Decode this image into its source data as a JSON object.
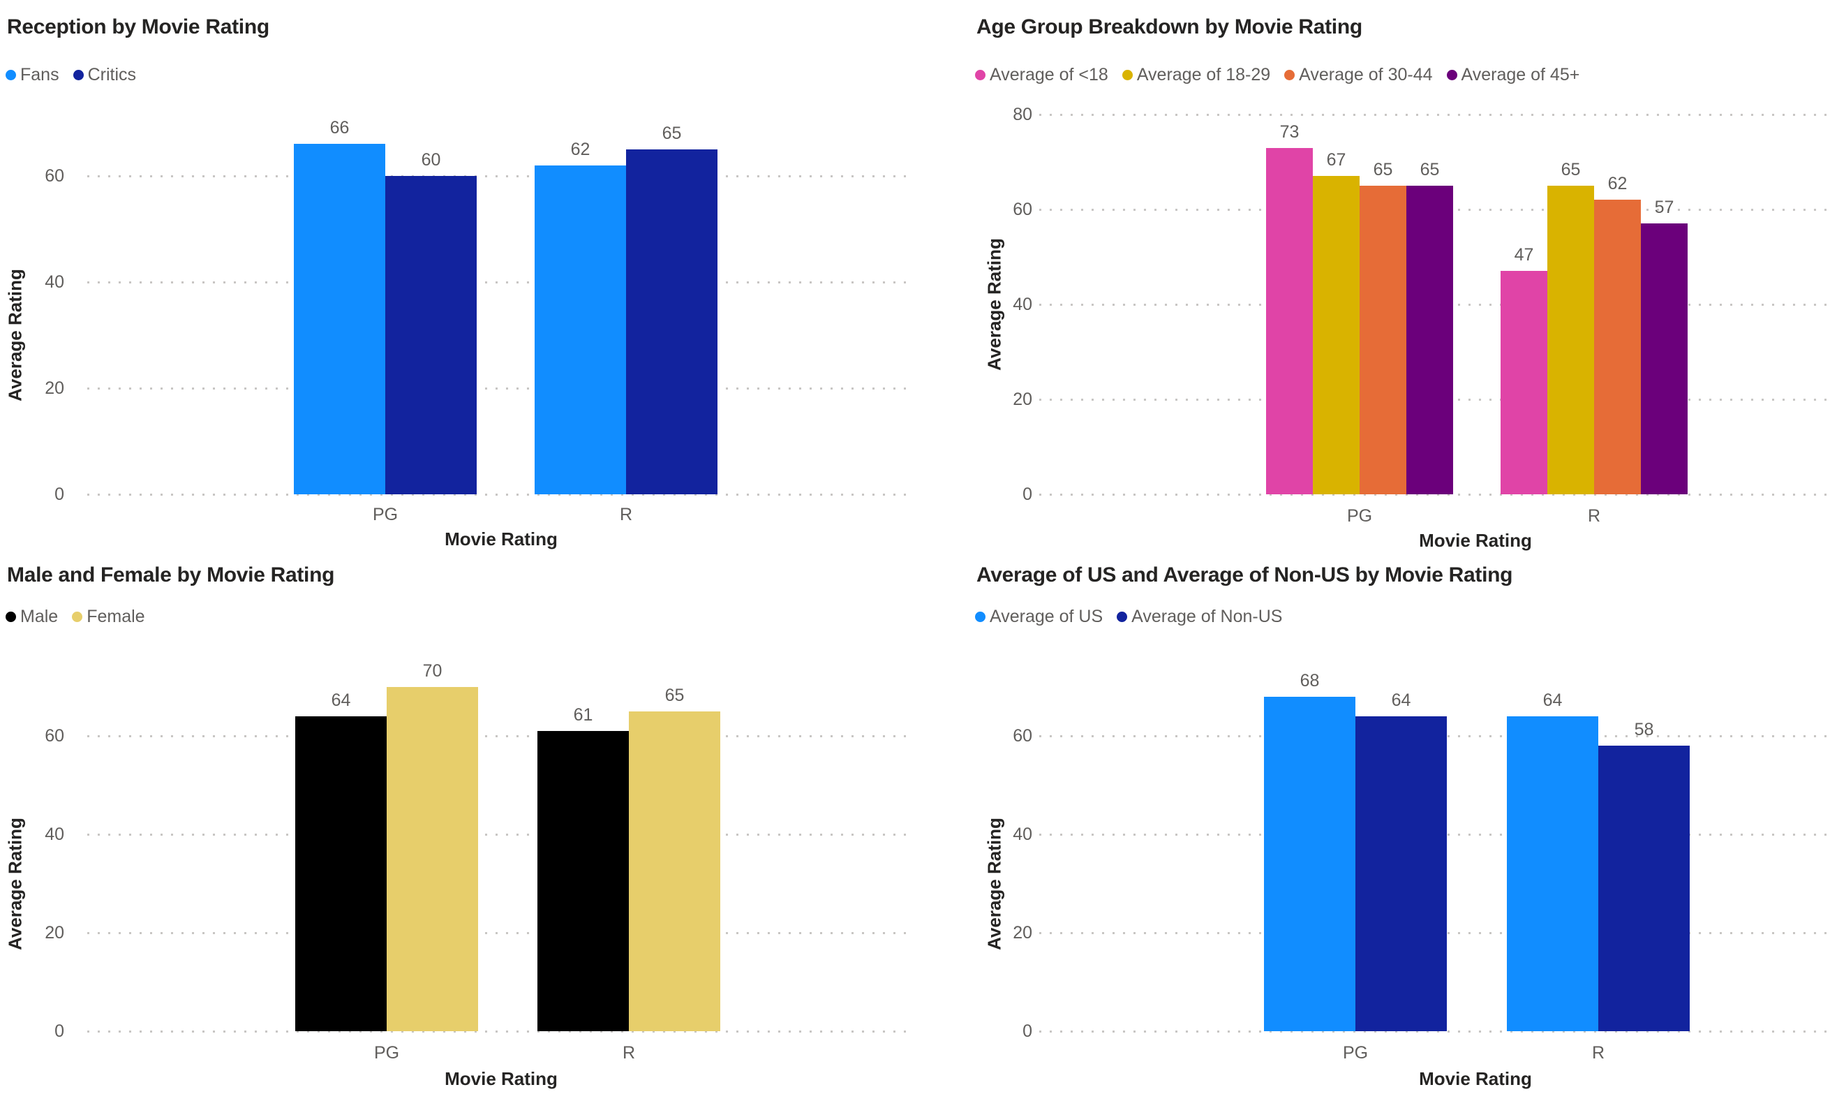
{
  "page": {
    "background": "#FFFFFF"
  },
  "colors": {
    "title_text": "#252423",
    "label_text": "#605E5C",
    "axis_title_text": "#252423",
    "gridline": "#C8C6C4"
  },
  "chart_data": [
    {
      "type": "bar",
      "title": "Reception by Movie Rating",
      "xlabel": "Movie Rating",
      "ylabel": "Average Rating",
      "categories": [
        "PG",
        "R"
      ],
      "series": [
        {
          "name": "Fans",
          "color": "#118DFF",
          "values": [
            66,
            62
          ]
        },
        {
          "name": "Critics",
          "color": "#12239E",
          "values": [
            60,
            65
          ]
        }
      ],
      "yticks": [
        0,
        20,
        40,
        60
      ],
      "ylim": [
        0,
        70
      ],
      "grid": "dotted-horizontal",
      "legend_position": "top-left",
      "value_labels": true
    },
    {
      "type": "bar",
      "title": "Age Group Breakdown by Movie Rating",
      "xlabel": "Movie Rating",
      "ylabel": "Average Rating",
      "categories": [
        "PG",
        "R"
      ],
      "series": [
        {
          "name": "Average of <18",
          "color": "#E044A7",
          "values": [
            73,
            47
          ]
        },
        {
          "name": "Average of 18-29",
          "color": "#D9B300",
          "values": [
            67,
            65
          ]
        },
        {
          "name": "Average of 30-44",
          "color": "#E66C37",
          "values": [
            65,
            62
          ]
        },
        {
          "name": "Average of 45+",
          "color": "#6B007B",
          "values": [
            65,
            57
          ]
        }
      ],
      "yticks": [
        0,
        20,
        40,
        60,
        80
      ],
      "ylim": [
        0,
        80
      ],
      "grid": "dotted-horizontal",
      "legend_position": "top-left",
      "value_labels": true
    },
    {
      "type": "bar",
      "title": "Male and Female by Movie Rating",
      "xlabel": "Movie Rating",
      "ylabel": "Average Rating",
      "categories": [
        "PG",
        "R"
      ],
      "series": [
        {
          "name": "Male",
          "color": "#000000",
          "values": [
            64,
            61
          ]
        },
        {
          "name": "Female",
          "color": "#E7CE6B",
          "values": [
            70,
            65
          ]
        }
      ],
      "yticks": [
        0,
        20,
        40,
        60
      ],
      "ylim": [
        0,
        70
      ],
      "grid": "dotted-horizontal",
      "legend_position": "top-left",
      "value_labels": true
    },
    {
      "type": "bar",
      "title": "Average of US and Average of Non-US by Movie Rating",
      "xlabel": "Movie Rating",
      "ylabel": "Average Rating",
      "categories": [
        "PG",
        "R"
      ],
      "series": [
        {
          "name": "Average of US",
          "color": "#118DFF",
          "values": [
            68,
            64
          ]
        },
        {
          "name": "Average of Non-US",
          "color": "#12239E",
          "values": [
            64,
            58
          ]
        }
      ],
      "yticks": [
        0,
        20,
        40,
        60
      ],
      "ylim": [
        0,
        70
      ],
      "grid": "dotted-horizontal",
      "legend_position": "top-left",
      "value_labels": true
    }
  ]
}
